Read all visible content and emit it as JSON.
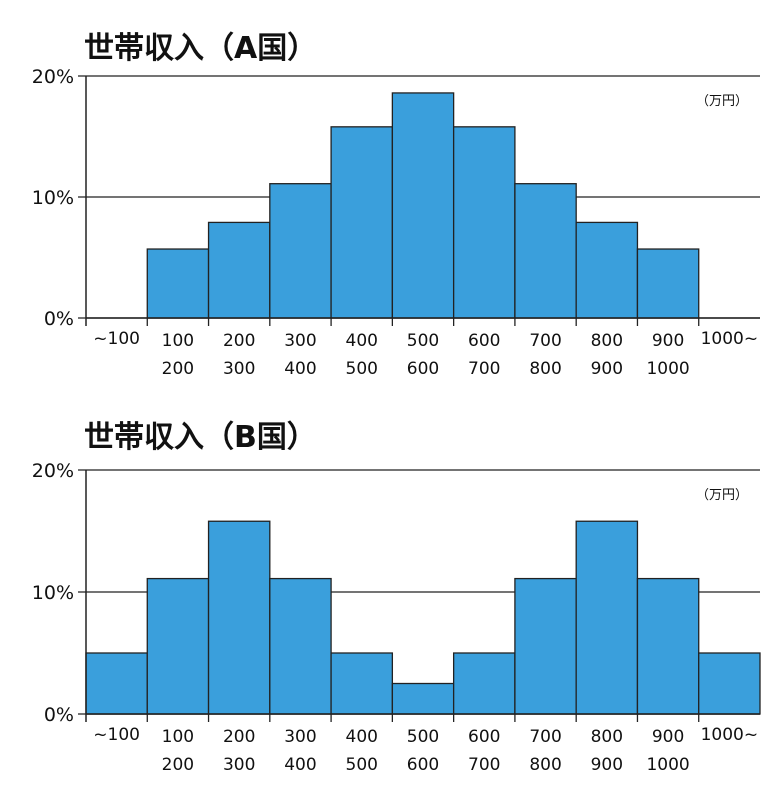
{
  "colors": {
    "bar": "#3a9fdc",
    "stroke": "#222222"
  },
  "chart_data": [
    {
      "type": "bar",
      "title": "世帯収入（A国）",
      "unit_label": "（万円）",
      "categories": [
        [
          "~100",
          ""
        ],
        [
          "100",
          "200"
        ],
        [
          "200",
          "300"
        ],
        [
          "300",
          "400"
        ],
        [
          "400",
          "500"
        ],
        [
          "500",
          "600"
        ],
        [
          "600",
          "700"
        ],
        [
          "700",
          "800"
        ],
        [
          "800",
          "900"
        ],
        [
          "900",
          "1000"
        ],
        [
          "1000~",
          ""
        ]
      ],
      "values": [
        0,
        5.7,
        7.9,
        11.1,
        15.8,
        18.6,
        15.8,
        11.1,
        7.9,
        5.7,
        0
      ],
      "ylim": [
        0,
        20
      ],
      "yticks": [
        {
          "value": 0,
          "label": "0%"
        },
        {
          "value": 10,
          "label": "10%"
        },
        {
          "value": 20,
          "label": "20%"
        }
      ],
      "xlabel": "",
      "ylabel": ""
    },
    {
      "type": "bar",
      "title": "世帯収入（B国）",
      "unit_label": "（万円）",
      "categories": [
        [
          "~100",
          ""
        ],
        [
          "100",
          "200"
        ],
        [
          "200",
          "300"
        ],
        [
          "300",
          "400"
        ],
        [
          "400",
          "500"
        ],
        [
          "500",
          "600"
        ],
        [
          "600",
          "700"
        ],
        [
          "700",
          "800"
        ],
        [
          "800",
          "900"
        ],
        [
          "900",
          "1000"
        ],
        [
          "1000~",
          ""
        ]
      ],
      "values": [
        5.0,
        11.1,
        15.8,
        11.1,
        5.0,
        2.5,
        5.0,
        11.1,
        15.8,
        11.1,
        5.0
      ],
      "ylim": [
        0,
        20
      ],
      "yticks": [
        {
          "value": 0,
          "label": "0%"
        },
        {
          "value": 10,
          "label": "10%"
        },
        {
          "value": 20,
          "label": "20%"
        }
      ],
      "xlabel": "",
      "ylabel": ""
    }
  ]
}
